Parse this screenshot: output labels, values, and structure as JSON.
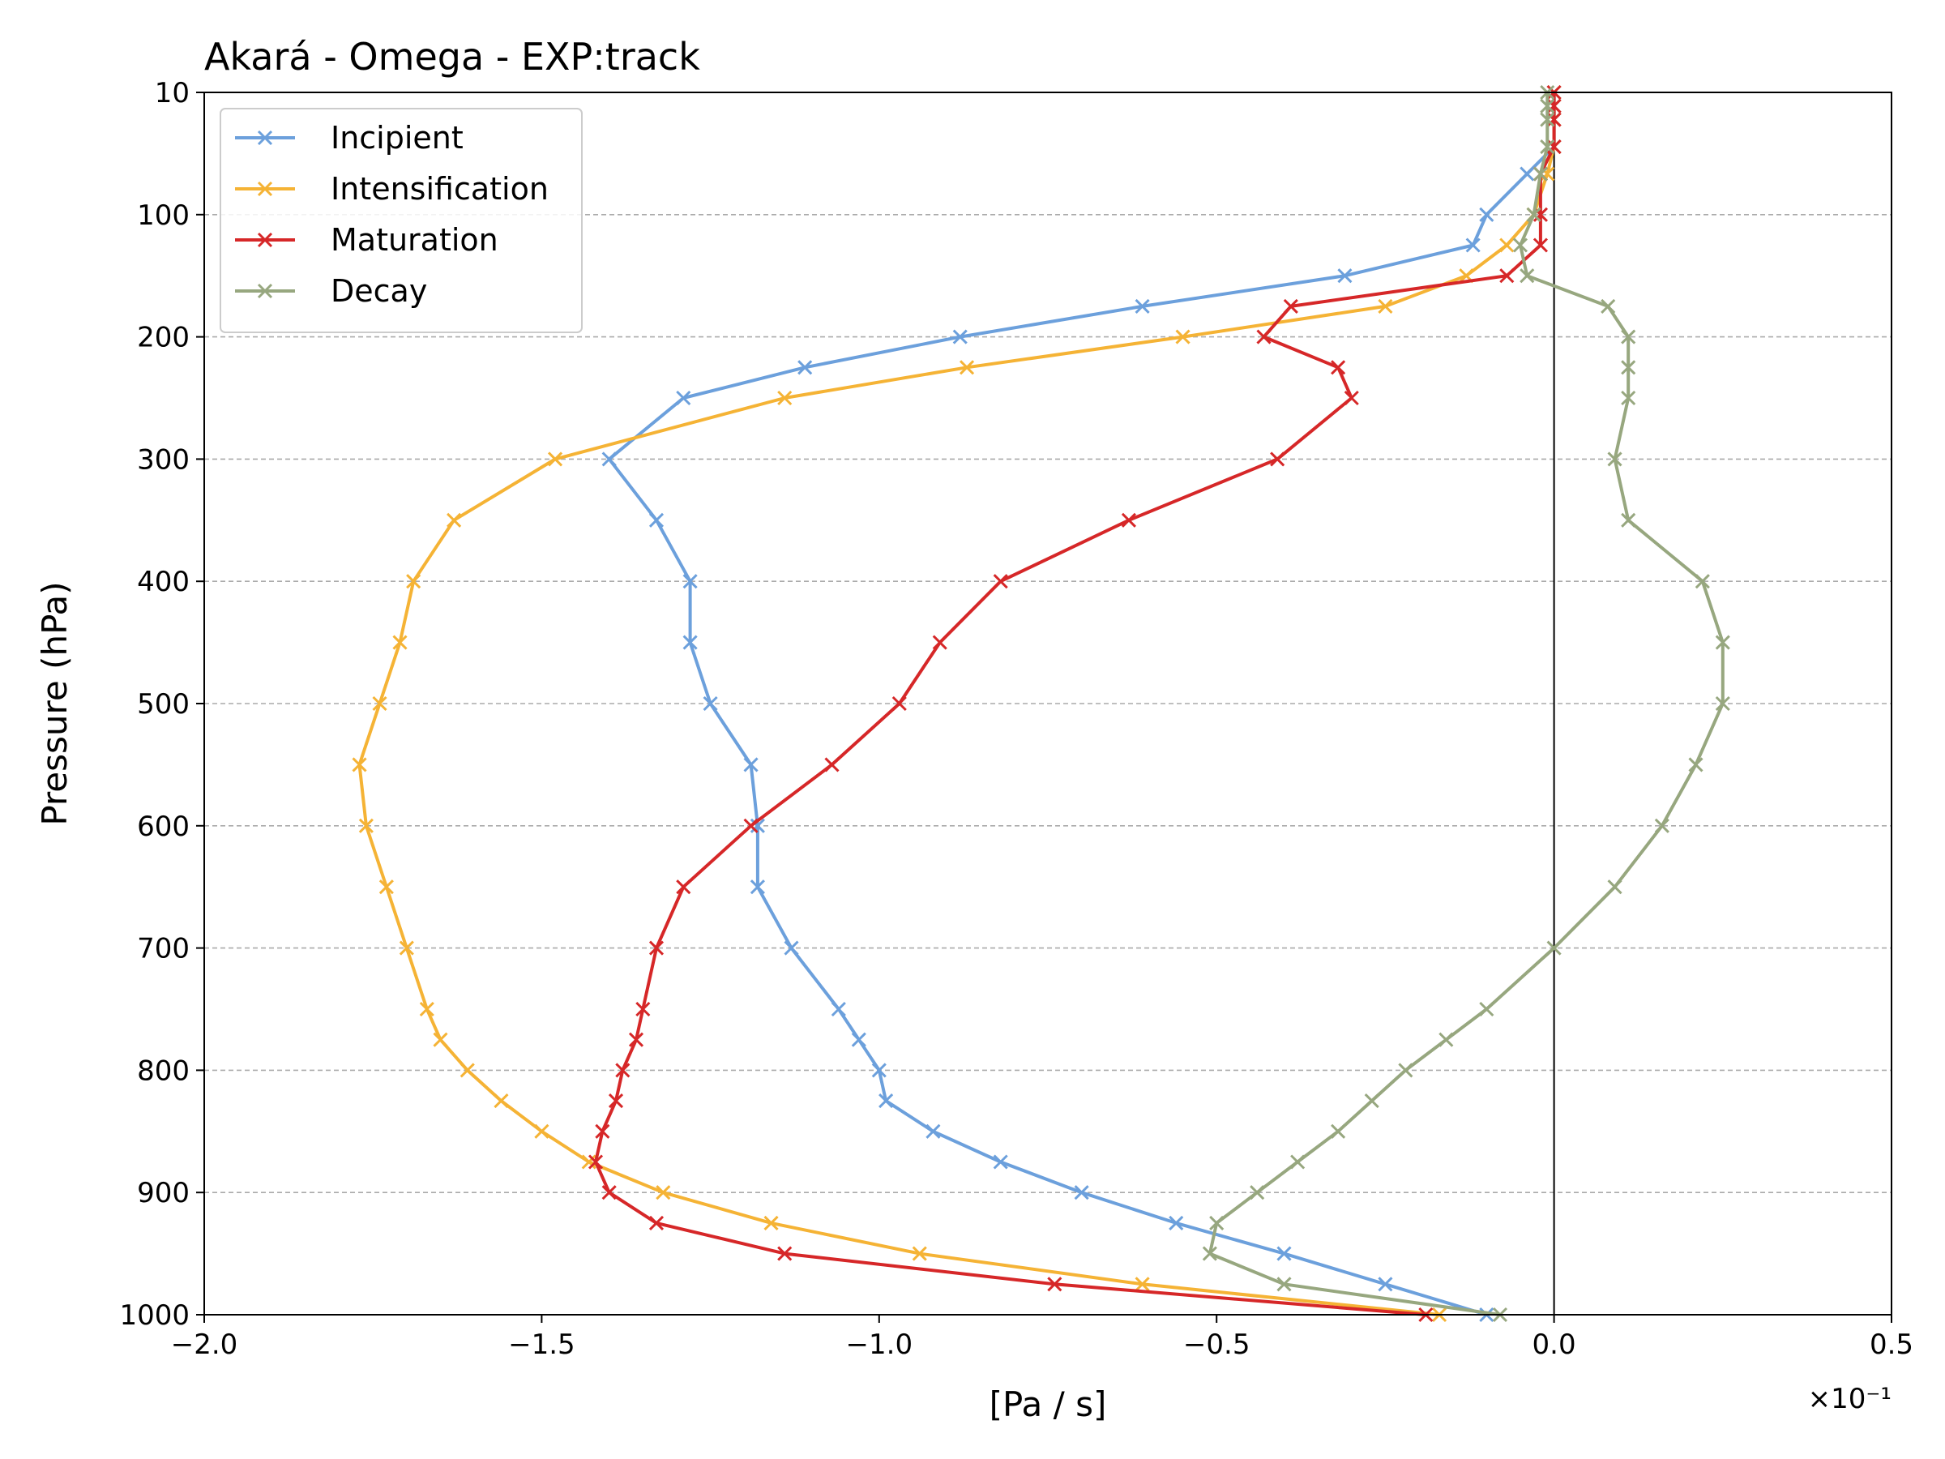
{
  "chart_data": {
    "type": "line",
    "title": "Akará - Omega - EXP:track",
    "xlabel": "[Pa / s]",
    "ylabel": "Pressure (hPa)",
    "x_offset_label": "×10⁻¹",
    "xlim": [
      -2.0,
      0.5
    ],
    "ylim": [
      1000,
      10
    ],
    "y_inverted": true,
    "grid": "horizontal dashed",
    "legend_position": "top-left",
    "x_ticks": [
      -2.0,
      -1.5,
      -1.0,
      -0.5,
      0.0,
      0.5
    ],
    "x_tick_labels": [
      "−2.0",
      "−1.5",
      "−1.0",
      "−0.5",
      "0.0",
      "0.5"
    ],
    "y_ticks": [
      10,
      100,
      200,
      300,
      400,
      500,
      600,
      700,
      800,
      900,
      1000
    ],
    "y_tick_labels": [
      "10",
      "100",
      "200",
      "300",
      "400",
      "500",
      "600",
      "700",
      "800",
      "900",
      "1000"
    ],
    "reference_line_x": 0.0,
    "pressure_levels": [
      10,
      20,
      30,
      50,
      70,
      100,
      125,
      150,
      175,
      200,
      225,
      250,
      300,
      350,
      400,
      450,
      500,
      550,
      600,
      650,
      700,
      750,
      775,
      800,
      825,
      850,
      875,
      900,
      925,
      950,
      975,
      1000
    ],
    "series": [
      {
        "name": "Incipient",
        "color": "#6ca0dc",
        "values": [
          0.0,
          0.0,
          0.0,
          0.0,
          -0.04,
          -0.1,
          -0.12,
          -0.31,
          -0.61,
          -0.88,
          -1.11,
          -1.29,
          -1.4,
          -1.33,
          -1.28,
          -1.28,
          -1.25,
          -1.19,
          -1.18,
          -1.18,
          -1.13,
          -1.06,
          -1.03,
          -1.0,
          -0.99,
          -0.92,
          -0.82,
          -0.7,
          -0.56,
          -0.4,
          -0.25,
          -0.1
        ]
      },
      {
        "name": "Intensification",
        "color": "#f5b335",
        "values": [
          0.0,
          0.0,
          0.0,
          0.0,
          -0.01,
          -0.03,
          -0.07,
          -0.13,
          -0.25,
          -0.55,
          -0.87,
          -1.14,
          -1.48,
          -1.63,
          -1.69,
          -1.71,
          -1.74,
          -1.77,
          -1.76,
          -1.73,
          -1.7,
          -1.67,
          -1.65,
          -1.61,
          -1.56,
          -1.5,
          -1.43,
          -1.32,
          -1.16,
          -0.94,
          -0.61,
          -0.17
        ]
      },
      {
        "name": "Maturation",
        "color": "#d62728",
        "values": [
          0.0,
          0.0,
          0.0,
          0.0,
          -0.02,
          -0.02,
          -0.02,
          -0.07,
          -0.39,
          -0.43,
          -0.32,
          -0.3,
          -0.41,
          -0.63,
          -0.82,
          -0.91,
          -0.97,
          -1.07,
          -1.19,
          -1.29,
          -1.33,
          -1.35,
          -1.36,
          -1.38,
          -1.39,
          -1.41,
          -1.42,
          -1.4,
          -1.33,
          -1.14,
          -0.74,
          -0.19
        ]
      },
      {
        "name": "Decay",
        "color": "#97a77f",
        "values": [
          -0.01,
          -0.01,
          -0.01,
          -0.01,
          -0.02,
          -0.03,
          -0.05,
          -0.04,
          0.08,
          0.11,
          0.11,
          0.11,
          0.09,
          0.11,
          0.22,
          0.25,
          0.25,
          0.21,
          0.16,
          0.09,
          0.0,
          -0.1,
          -0.16,
          -0.22,
          -0.27,
          -0.32,
          -0.38,
          -0.44,
          -0.5,
          -0.51,
          -0.4,
          -0.08
        ]
      }
    ]
  }
}
